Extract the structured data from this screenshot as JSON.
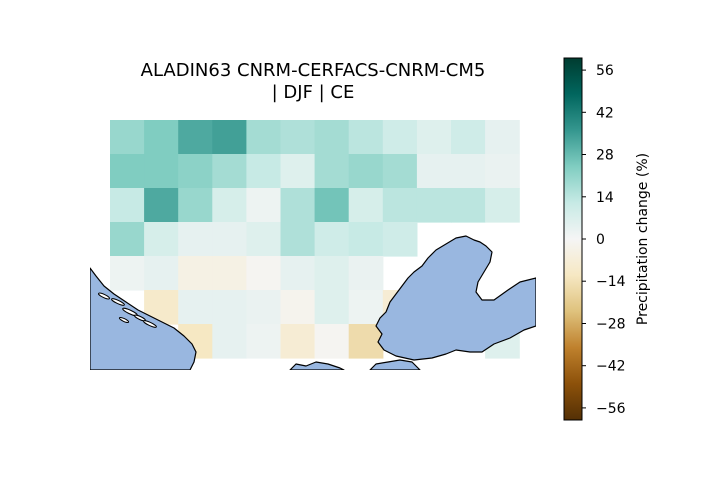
{
  "figure": {
    "title_line1": "ALADIN63 CNRM-CERFACS-CNRM-CM5",
    "title_line2": "| DJF | CE"
  },
  "colorbar": {
    "label": "Precipitation change (%)",
    "min": -60,
    "max": 60,
    "ticks": [
      -56,
      -42,
      -28,
      -14,
      0,
      14,
      28,
      42,
      56
    ],
    "tick_labels": [
      "−56",
      "−42",
      "−28",
      "−14",
      "0",
      "14",
      "28",
      "42",
      "56"
    ],
    "colormap": "BrBG",
    "stops": [
      "#543005",
      "#8c510a",
      "#bf812d",
      "#dfc27d",
      "#f6e8c3",
      "#f5f5f5",
      "#c7eae5",
      "#80cdc1",
      "#35978f",
      "#01665e",
      "#003c30"
    ]
  },
  "map": {
    "land_color": "#ffffff",
    "sea_color": "#99b7e0",
    "coastline_color": "#000000",
    "grid_rows": 7,
    "grid_cols": 12,
    "values": [
      [
        20,
        24,
        32,
        34,
        18,
        16,
        18,
        14,
        10,
        6,
        10,
        4
      ],
      [
        24,
        24,
        22,
        18,
        12,
        6,
        18,
        20,
        18,
        4,
        4,
        3
      ],
      [
        12,
        32,
        20,
        8,
        2,
        16,
        26,
        8,
        14,
        14,
        14,
        8
      ],
      [
        20,
        8,
        4,
        4,
        6,
        16,
        10,
        12,
        10,
        null,
        null,
        null
      ],
      [
        2,
        4,
        -4,
        -4,
        -1,
        4,
        6,
        3,
        null,
        null,
        null,
        null
      ],
      [
        null,
        -10,
        4,
        4,
        3,
        -2,
        6,
        2,
        -8,
        null,
        null,
        null
      ],
      [
        null,
        null,
        -12,
        4,
        2,
        -8,
        -1,
        -16,
        null,
        null,
        null,
        6
      ]
    ]
  }
}
